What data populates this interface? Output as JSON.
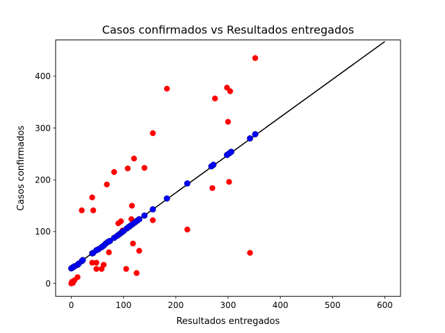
{
  "chart_data": {
    "type": "scatter",
    "title": "Casos confirmados vs Resultados entregados",
    "xlabel": "Resultados entregados",
    "ylabel": "Casos confirmados",
    "xlim": [
      -30,
      630
    ],
    "ylim": [
      -25,
      470
    ],
    "x_ticks": [
      0,
      100,
      200,
      300,
      400,
      500,
      600
    ],
    "y_ticks": [
      0,
      100,
      200,
      300,
      400
    ],
    "grid": false,
    "legend": "none",
    "colors": {
      "observed": "#ff0000",
      "predicted": "#0000ff",
      "fit_line": "#000000",
      "marker_edge": "#000080"
    },
    "series": [
      {
        "kind": "observed",
        "color": "#ff0000",
        "points": [
          [
            0,
            0
          ],
          [
            2,
            2
          ],
          [
            4,
            4
          ],
          [
            6,
            6
          ],
          [
            3,
            1
          ],
          [
            1,
            3
          ],
          [
            12,
            12
          ],
          [
            20,
            141
          ],
          [
            40,
            166
          ],
          [
            42,
            141
          ],
          [
            40,
            40
          ],
          [
            48,
            40
          ],
          [
            48,
            28
          ],
          [
            58,
            28
          ],
          [
            62,
            36
          ],
          [
            68,
            191
          ],
          [
            72,
            60
          ],
          [
            82,
            215
          ],
          [
            90,
            116
          ],
          [
            95,
            120
          ],
          [
            98,
            102
          ],
          [
            105,
            28
          ],
          [
            108,
            222
          ],
          [
            115,
            124
          ],
          [
            116,
            150
          ],
          [
            120,
            241
          ],
          [
            118,
            77
          ],
          [
            125,
            20
          ],
          [
            130,
            63
          ],
          [
            140,
            223
          ],
          [
            156,
            290
          ],
          [
            156,
            122
          ],
          [
            183,
            376
          ],
          [
            222,
            104
          ],
          [
            270,
            184
          ],
          [
            275,
            357
          ],
          [
            298,
            378
          ],
          [
            300,
            312
          ],
          [
            302,
            196
          ],
          [
            304,
            371
          ],
          [
            342,
            59
          ],
          [
            352,
            435
          ]
        ]
      },
      {
        "kind": "predicted",
        "color": "#0000ff",
        "points": [
          [
            0,
            29
          ],
          [
            3,
            31
          ],
          [
            6,
            33
          ],
          [
            12,
            36
          ],
          [
            14,
            38
          ],
          [
            20,
            43
          ],
          [
            22,
            45
          ],
          [
            40,
            58
          ],
          [
            42,
            59
          ],
          [
            48,
            64
          ],
          [
            52,
            66
          ],
          [
            58,
            70
          ],
          [
            62,
            73
          ],
          [
            66,
            77
          ],
          [
            70,
            80
          ],
          [
            74,
            82
          ],
          [
            82,
            88
          ],
          [
            88,
            92
          ],
          [
            92,
            95
          ],
          [
            96,
            98
          ],
          [
            98,
            100
          ],
          [
            100,
            101
          ],
          [
            106,
            106
          ],
          [
            110,
            109
          ],
          [
            114,
            112
          ],
          [
            118,
            115
          ],
          [
            122,
            118
          ],
          [
            126,
            121
          ],
          [
            130,
            124
          ],
          [
            140,
            131
          ],
          [
            156,
            143
          ],
          [
            183,
            164
          ],
          [
            222,
            193
          ],
          [
            268,
            226
          ],
          [
            272,
            229
          ],
          [
            298,
            248
          ],
          [
            302,
            251
          ],
          [
            306,
            254
          ],
          [
            342,
            280
          ],
          [
            352,
            288
          ]
        ]
      }
    ],
    "fit_line": {
      "x": [
        0,
        600
      ],
      "y": [
        29,
        467
      ]
    }
  }
}
